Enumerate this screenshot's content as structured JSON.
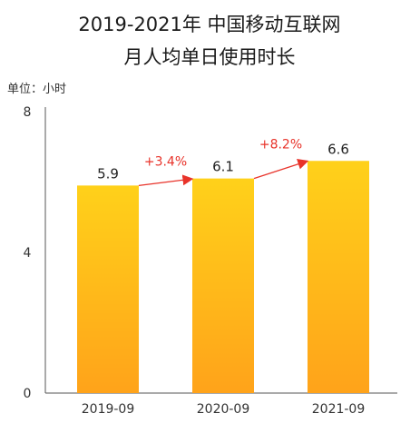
{
  "chart_data": {
    "type": "bar",
    "title": "2019-2021年 中国移动互联网",
    "subtitle": "月人均单日使用时长",
    "unit_label": "单位：小时",
    "categories": [
      "2019-09",
      "2020-09",
      "2021-09"
    ],
    "values": [
      5.9,
      6.1,
      6.6
    ],
    "value_labels": [
      "5.9",
      "6.1",
      "6.6"
    ],
    "growth_labels": [
      "+3.4%",
      "+8.2%"
    ],
    "yticks": [
      "0",
      "4",
      "8"
    ],
    "ylim": [
      0,
      8
    ],
    "grid": false,
    "bar_gradient": [
      "#ffd11a",
      "#ffa31a"
    ],
    "arrow_color": "#e8332a"
  }
}
